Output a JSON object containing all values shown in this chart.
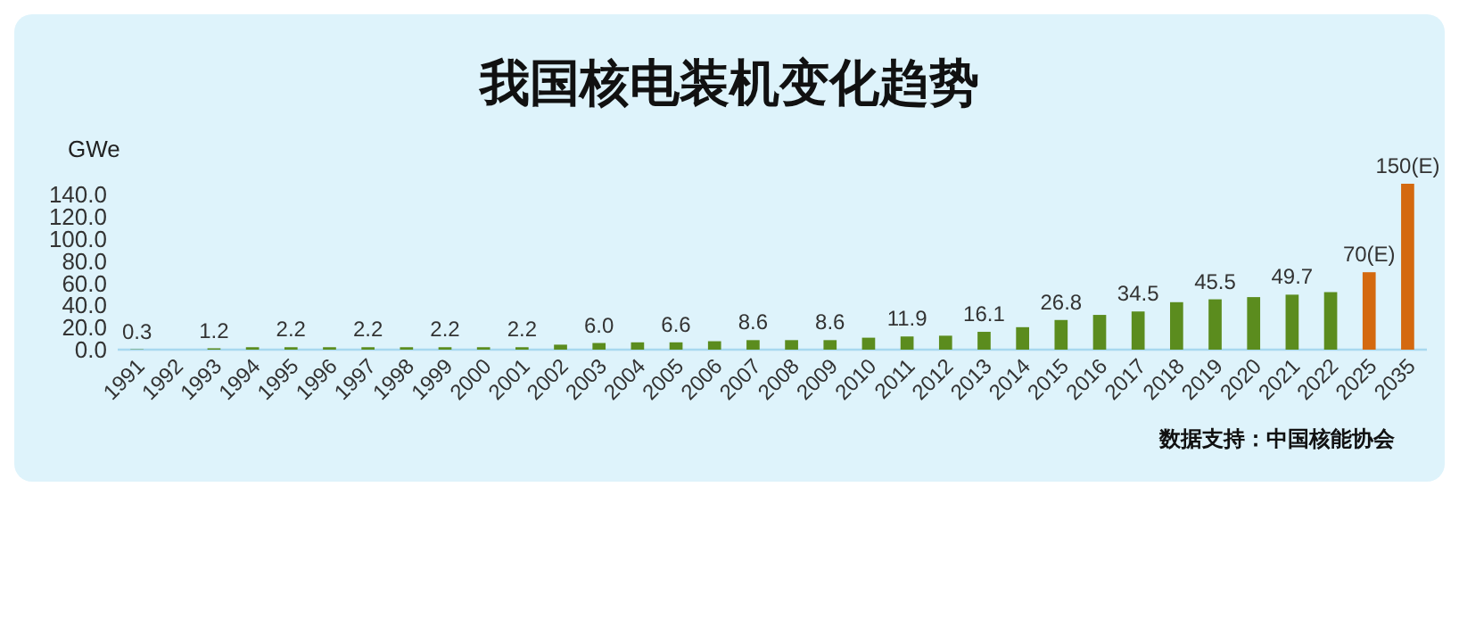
{
  "chart_data": {
    "type": "bar",
    "title": "我国核电装机变化趋势",
    "ylabel": "GWe",
    "categories": [
      "1991",
      "1992",
      "1993",
      "1994",
      "1995",
      "1996",
      "1997",
      "1998",
      "1999",
      "2000",
      "2001",
      "2002",
      "2003",
      "2004",
      "2005",
      "2006",
      "2007",
      "2008",
      "2009",
      "2010",
      "2011",
      "2012",
      "2013",
      "2014",
      "2015",
      "2016",
      "2017",
      "2018",
      "2019",
      "2020",
      "2021",
      "2022",
      "2025",
      "2035"
    ],
    "values": [
      0.3,
      null,
      1.2,
      2.2,
      2.2,
      2.2,
      2.2,
      2.2,
      2.2,
      2.2,
      2.2,
      4.5,
      6.0,
      6.6,
      6.6,
      7.6,
      8.6,
      8.6,
      8.6,
      10.8,
      11.9,
      12.6,
      16.1,
      20.3,
      26.8,
      31.4,
      34.5,
      42.9,
      45.5,
      47.5,
      49.7,
      52.0,
      70,
      150
    ],
    "colors": [
      "#5b8c1e",
      null,
      "#5b8c1e",
      "#5b8c1e",
      "#5b8c1e",
      "#5b8c1e",
      "#5b8c1e",
      "#5b8c1e",
      "#5b8c1e",
      "#5b8c1e",
      "#5b8c1e",
      "#5b8c1e",
      "#5b8c1e",
      "#5b8c1e",
      "#5b8c1e",
      "#5b8c1e",
      "#5b8c1e",
      "#5b8c1e",
      "#5b8c1e",
      "#5b8c1e",
      "#5b8c1e",
      "#5b8c1e",
      "#5b8c1e",
      "#5b8c1e",
      "#5b8c1e",
      "#5b8c1e",
      "#5b8c1e",
      "#5b8c1e",
      "#5b8c1e",
      "#5b8c1e",
      "#5b8c1e",
      "#5b8c1e",
      "#d4690f",
      "#d4690f"
    ],
    "value_labels": [
      "0.3",
      null,
      "1.2",
      null,
      "2.2",
      null,
      "2.2",
      null,
      "2.2",
      null,
      "2.2",
      null,
      "6.0",
      null,
      "6.6",
      null,
      "8.6",
      null,
      "8.6",
      null,
      "11.9",
      null,
      "16.1",
      null,
      "26.8",
      null,
      "34.5",
      null,
      "45.5",
      null,
      "49.7",
      null,
      "70(E)",
      "150(E)"
    ],
    "ylim": [
      0,
      150
    ],
    "yticks": [
      {
        "value": 0,
        "label": "0.0"
      },
      {
        "value": 20,
        "label": "20.0"
      },
      {
        "value": 40,
        "label": "40.0"
      },
      {
        "value": 60,
        "label": "60.0"
      },
      {
        "value": 80,
        "label": "80.0"
      },
      {
        "value": 100,
        "label": "100.0"
      },
      {
        "value": 120,
        "label": "120.0"
      },
      {
        "value": 140,
        "label": "140.0"
      }
    ],
    "annotations": [
      "数据支持：中国核能协会"
    ]
  }
}
